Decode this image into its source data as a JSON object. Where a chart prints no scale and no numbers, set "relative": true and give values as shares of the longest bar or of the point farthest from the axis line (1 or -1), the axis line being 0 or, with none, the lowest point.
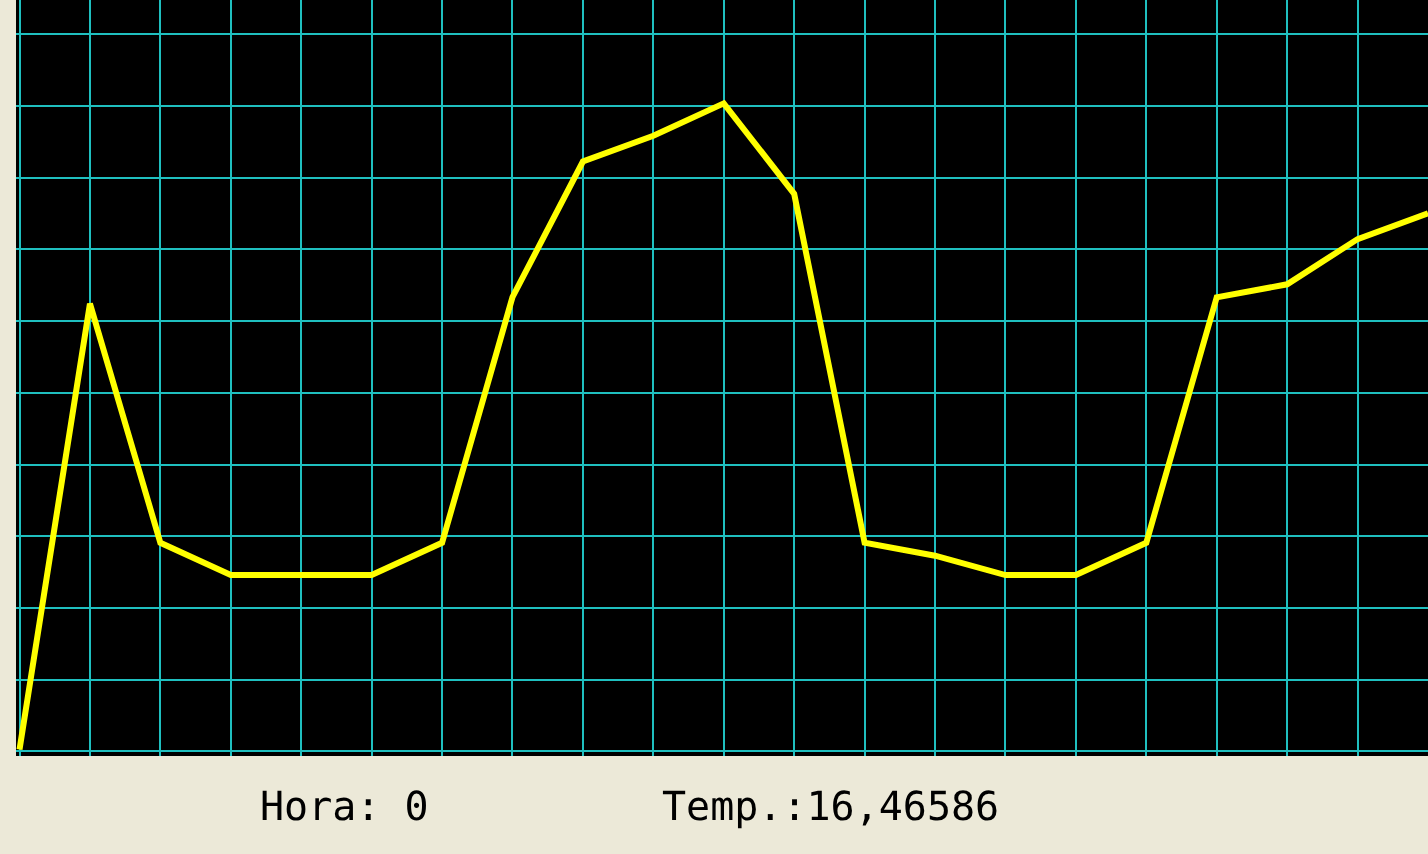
{
  "chart_data": {
    "type": "line",
    "relative": true,
    "grid": true,
    "marker": "none",
    "line_style": "solid",
    "categories": [
      null,
      null,
      null,
      null,
      null,
      null,
      null,
      null,
      null,
      null,
      null,
      null,
      null,
      null,
      null,
      null,
      null,
      null,
      null,
      null,
      null
    ],
    "series": [
      {
        "color": "#ffff00",
        "values": [
          0,
          0.69,
          0.32,
          0.27,
          0.27,
          0.27,
          0.32,
          0.7,
          0.91,
          0.95,
          1,
          0.86,
          0.32,
          0.3,
          0.27,
          0.27,
          0.32,
          0.7,
          0.72,
          0.79,
          0.83
        ]
      }
    ],
    "annotations": [
      "Hora: 0",
      "Temp.:16,46586"
    ]
  }
}
